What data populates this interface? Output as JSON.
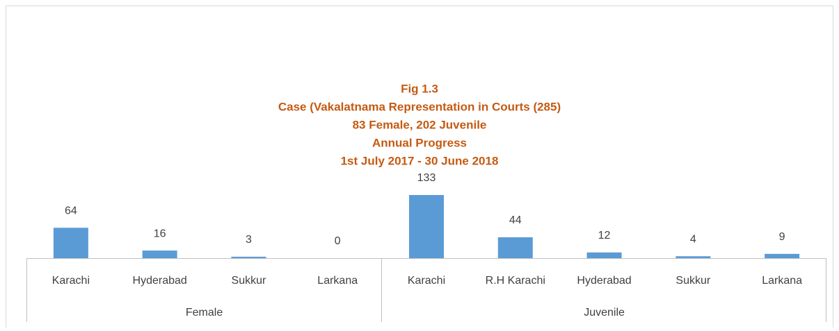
{
  "chart_data": {
    "type": "bar",
    "title": [
      "Fig 1.3",
      "Case (Vakalatnama Representation in Courts (285)",
      "83 Female, 202 Juvenile",
      "Annual Progress",
      "1st July 2017 - 30 June 2018"
    ],
    "color": "#5b9bd5",
    "groups": [
      {
        "name": "Female",
        "categories": [
          "Karachi",
          "Hyderabad",
          "Sukkur",
          "Larkana"
        ],
        "values": [
          64,
          16,
          3,
          0
        ]
      },
      {
        "name": "Juvenile",
        "categories": [
          "Karachi",
          "R.H Karachi",
          "Hyderabad",
          "Sukkur",
          "Larkana"
        ],
        "values": [
          133,
          44,
          12,
          4,
          9
        ]
      }
    ]
  }
}
